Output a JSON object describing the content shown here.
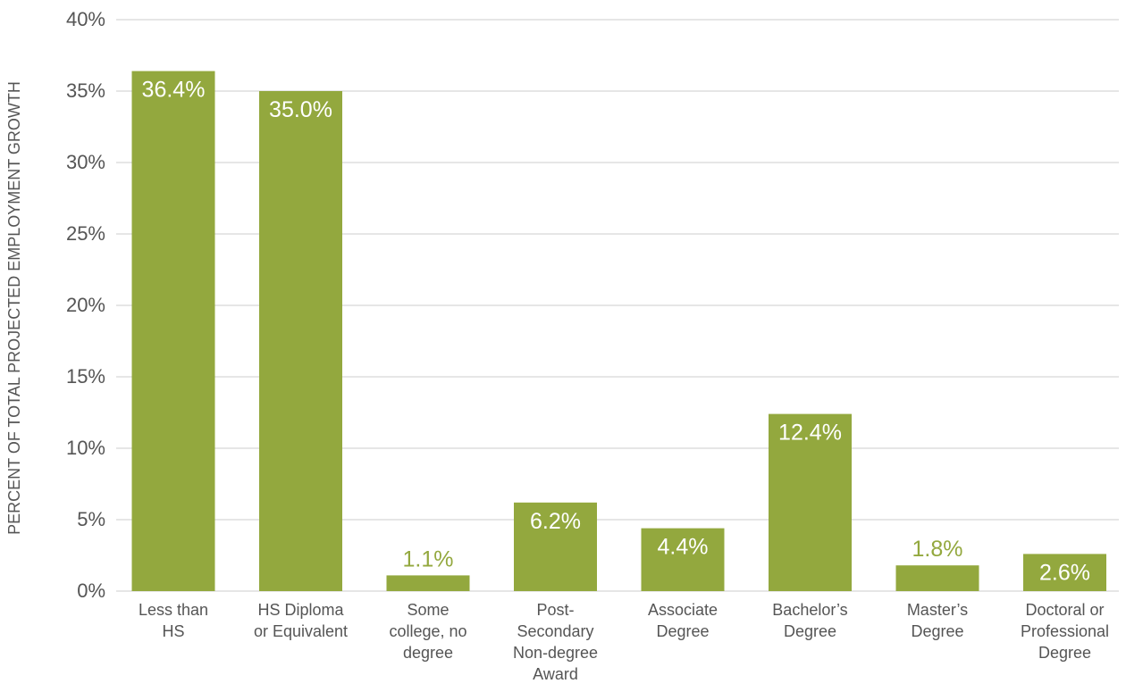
{
  "chart_data": {
    "type": "bar",
    "ylabel": "PERCENT OF TOTAL PROJECTED EMPLOYMENT GROWTH",
    "xlabel": "",
    "title": "",
    "ylim": [
      0,
      40
    ],
    "ytick_step": 5,
    "ytick_suffix": "%",
    "grid": true,
    "bar_color": "#93a83e",
    "inside_label_color": "#ffffff",
    "outside_label_color": "#93a83e",
    "axis_text_color": "#555555",
    "grid_color": "#cccccc",
    "categories": [
      [
        "Less than",
        "HS"
      ],
      [
        "HS Diploma",
        "or Equivalent"
      ],
      [
        "Some",
        "college, no",
        "degree"
      ],
      [
        "Post-",
        "Secondary",
        "Non-degree",
        "Award"
      ],
      [
        "Associate",
        "Degree"
      ],
      [
        "Bachelor’s",
        "Degree"
      ],
      [
        "Master’s",
        "Degree"
      ],
      [
        "Doctoral or",
        "Professional",
        "Degree"
      ]
    ],
    "values": [
      36.4,
      35.0,
      1.1,
      6.2,
      4.4,
      12.4,
      1.8,
      2.6
    ],
    "value_labels": [
      "36.4%",
      "35.0%",
      "1.1%",
      "6.2%",
      "4.4%",
      "12.4%",
      "1.8%",
      "2.6%"
    ]
  }
}
